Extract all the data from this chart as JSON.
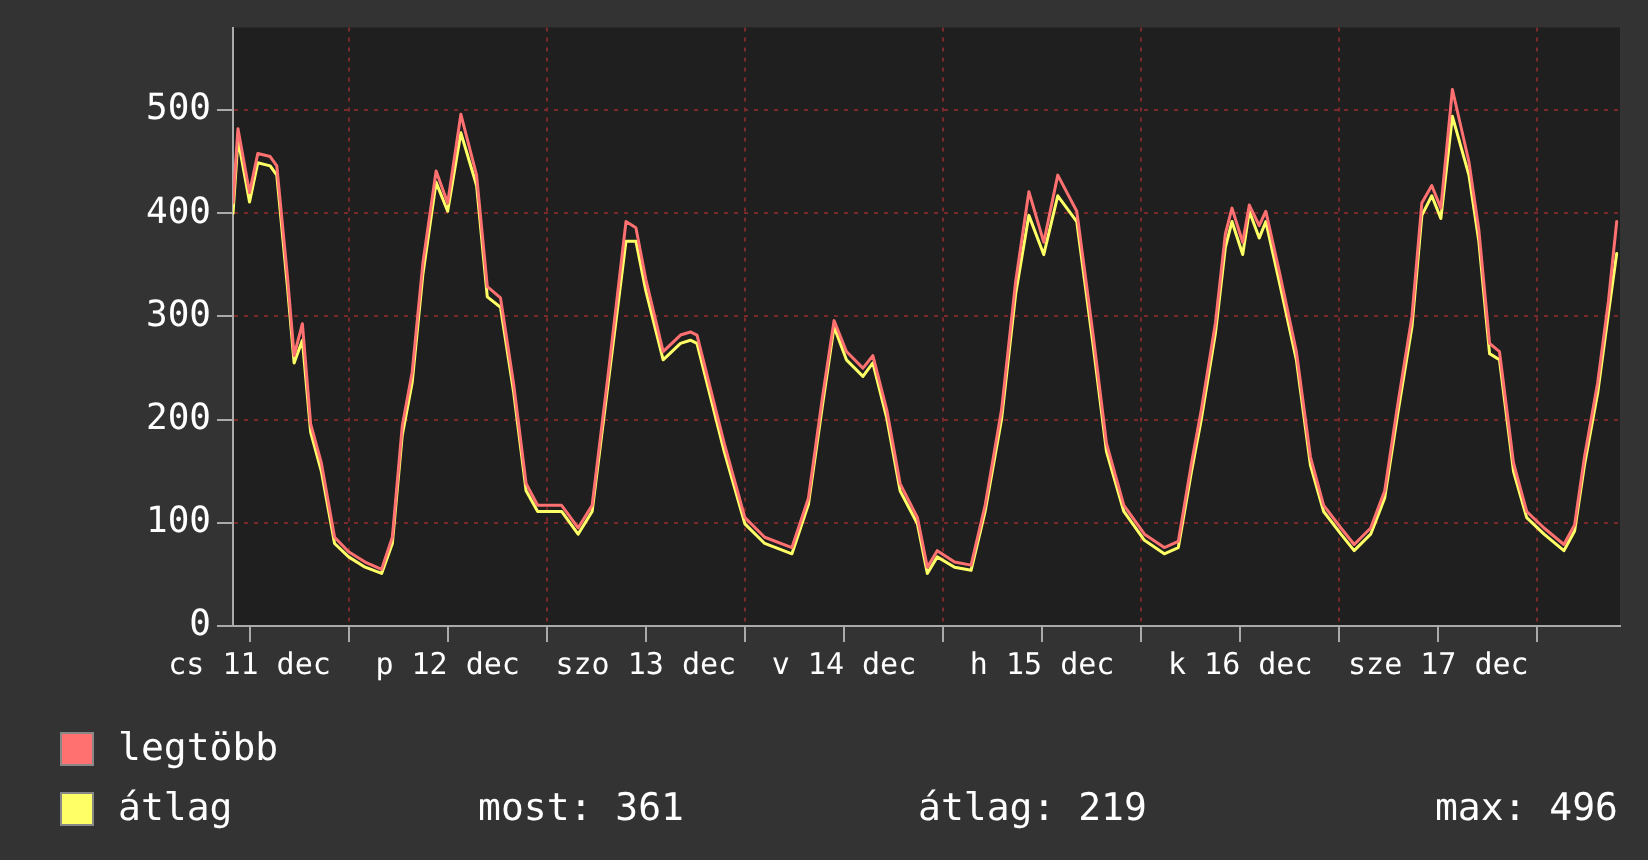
{
  "chart_data": {
    "type": "line",
    "x": [
      "--12-11T10:00",
      "--12-11T10:36",
      "--12-11T12:00",
      "--12-11T13:00",
      "--12-11T14:30",
      "--12-11T15:18",
      "--12-11T16:36",
      "--12-11T17:24",
      "--12-11T18:24",
      "--12-11T19:24",
      "--12-11T20:42",
      "--12-11T22:18",
      "--12-12T00:00",
      "--12-12T02:00",
      "--12-12T04:00",
      "--12-12T05:18",
      "--12-12T06:30",
      "--12-12T07:42",
      "--12-12T09:00",
      "--12-12T10:36",
      "--12-12T12:00",
      "--12-12T13:36",
      "--12-12T15:30",
      "--12-12T16:48",
      "--12-12T18:24",
      "--12-12T20:00",
      "--12-12T21:30",
      "--12-12T22:54",
      "--12-13T01:48",
      "--12-13T03:48",
      "--12-13T05:30",
      "--12-13T07:30",
      "--12-13T09:36",
      "--12-13T10:48",
      "--12-13T12:00",
      "--12-13T14:06",
      "--12-13T16:12",
      "--12-13T17:24",
      "--12-13T18:12",
      "--12-13T21:30",
      "--12-14T00:00",
      "--12-14T02:24",
      "--12-14T05:42",
      "--12-14T07:42",
      "--12-14T09:24",
      "--12-14T10:48",
      "--12-14T12:18",
      "--12-14T14:18",
      "--12-14T15:30",
      "--12-14T17:12",
      "--12-14T18:48",
      "--12-14T20:54",
      "--12-14T22:06",
      "--12-14T23:18",
      "--12-15T01:24",
      "--12-15T03:24",
      "--12-15T05:06",
      "--12-15T07:06",
      "--12-15T08:48",
      "--12-15T10:24",
      "--12-15T12:12",
      "--12-15T13:54",
      "--12-15T16:12",
      "--12-15T18:12",
      "--12-15T19:48",
      "--12-15T21:54",
      "--12-16T00:24",
      "--12-16T02:48",
      "--12-16T04:30",
      "--12-16T06:06",
      "--12-16T07:18",
      "--12-16T09:00",
      "--12-16T10:12",
      "--12-16T11:00",
      "--12-16T12:18",
      "--12-16T13:06",
      "--12-16T14:18",
      "--12-16T15:06",
      "--12-16T16:48",
      "--12-16T18:48",
      "--12-16T20:30",
      "--12-16T22:06",
      "--12-17T00:12",
      "--12-17T01:48",
      "--12-17T03:48",
      "--12-17T05:30",
      "--12-17T07:06",
      "--12-17T08:48",
      "--12-17T10:00",
      "--12-17T11:12",
      "--12-17T12:18",
      "--12-17T13:42",
      "--12-17T15:42",
      "--12-17T16:54",
      "--12-17T18:12",
      "--12-17T19:24",
      "--12-17T21:06",
      "--12-17T22:42",
      "--12-18T00:48",
      "--12-18T03:12",
      "--12-18T04:30",
      "--12-18T05:42",
      "--12-18T07:18",
      "--12-18T08:36",
      "--12-18T09:36"
    ],
    "series": [
      {
        "name": "legtöbb",
        "color": "#ff7070",
        "values": [
          410,
          482,
          420,
          458,
          455,
          446,
          338,
          262,
          293,
          196,
          158,
          86,
          72,
          62,
          55,
          86,
          194,
          246,
          352,
          441,
          410,
          496,
          437,
          329,
          318,
          234,
          138,
          117,
          117,
          95,
          117,
          248,
          392,
          386,
          336,
          266,
          282,
          285,
          282,
          177,
          105,
          86,
          76,
          124,
          222,
          296,
          266,
          250,
          262,
          209,
          138,
          105,
          57,
          73,
          62,
          59,
          117,
          210,
          334,
          421,
          372,
          437,
          402,
          281,
          177,
          117,
          89,
          76,
          82,
          158,
          210,
          294,
          380,
          405,
          372,
          408,
          388,
          402,
          341,
          266,
          164,
          117,
          95,
          79,
          95,
          131,
          216,
          300,
          410,
          427,
          405,
          520,
          450,
          384,
          274,
          266,
          158,
          111,
          95,
          79,
          98,
          164,
          236,
          315,
          392
        ]
      },
      {
        "name": "átlag",
        "color": "#ffff66",
        "values": [
          400,
          472,
          411,
          449,
          446,
          437,
          328,
          255,
          277,
          188,
          150,
          80,
          67,
          57,
          51,
          80,
          185,
          236,
          341,
          430,
          402,
          478,
          427,
          319,
          309,
          226,
          131,
          111,
          111,
          89,
          111,
          239,
          373,
          373,
          325,
          258,
          274,
          277,
          274,
          169,
          99,
          80,
          70,
          118,
          214,
          290,
          258,
          242,
          255,
          201,
          131,
          99,
          51,
          67,
          57,
          54,
          111,
          201,
          322,
          398,
          360,
          417,
          392,
          271,
          169,
          111,
          83,
          70,
          76,
          150,
          201,
          284,
          367,
          392,
          360,
          402,
          376,
          392,
          331,
          258,
          156,
          111,
          89,
          73,
          89,
          124,
          207,
          290,
          398,
          417,
          395,
          494,
          437,
          373,
          264,
          258,
          150,
          105,
          89,
          73,
          92,
          156,
          226,
          303,
          361
        ]
      }
    ],
    "xlim": [
      "--12-11T10:00",
      "--12-18T10:00"
    ],
    "xticks": [
      {
        "value": "--12-11T12:00",
        "label": "cs 11 dec"
      },
      {
        "value": "--12-12T00:00",
        "label": null
      },
      {
        "value": "--12-12T12:00",
        "label": "p 12 dec"
      },
      {
        "value": "--12-13T00:00",
        "label": null
      },
      {
        "value": "--12-13T12:00",
        "label": "szo 13 dec"
      },
      {
        "value": "--12-14T00:00",
        "label": null
      },
      {
        "value": "--12-14T12:00",
        "label": "v 14 dec"
      },
      {
        "value": "--12-15T00:00",
        "label": null
      },
      {
        "value": "--12-15T12:00",
        "label": "h 15 dec"
      },
      {
        "value": "--12-16T00:00",
        "label": null
      },
      {
        "value": "--12-16T12:00",
        "label": "k 16 dec"
      },
      {
        "value": "--12-17T00:00",
        "label": null
      },
      {
        "value": "--12-17T12:00",
        "label": "sze 17 dec"
      },
      {
        "value": "--12-18T00:00",
        "label": null
      }
    ],
    "ylim": [
      0,
      580
    ],
    "yticks": [
      0,
      100,
      200,
      300,
      400,
      500
    ],
    "grid": true,
    "legend": "bottom left",
    "marker": "none",
    "line_style": "solid",
    "annotations": [
      "most: 361",
      "átlag: 219",
      "max: 496"
    ]
  }
}
